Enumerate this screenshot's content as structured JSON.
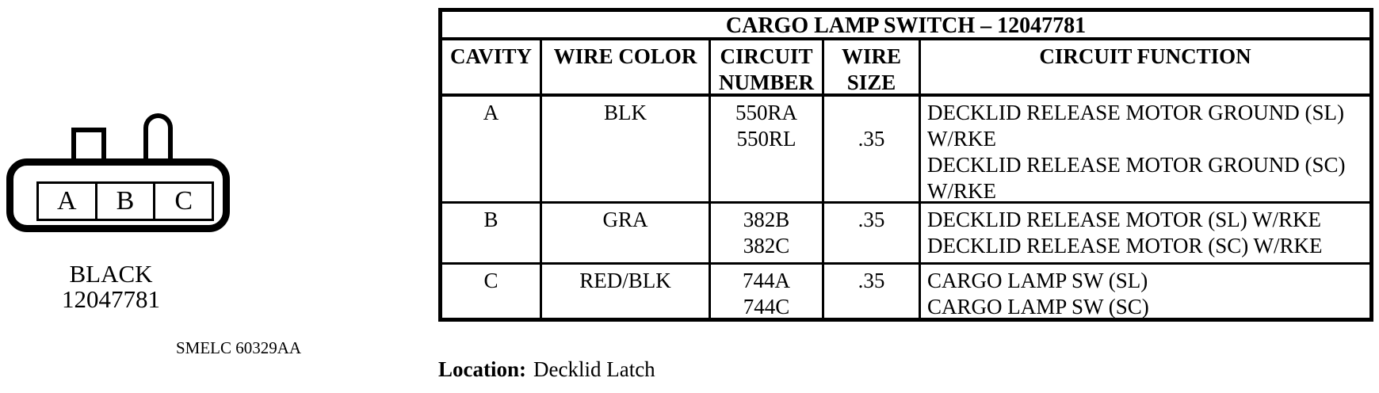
{
  "title": "CARGO LAMP SWITCH – 12047781",
  "connector": {
    "cavities": [
      "A",
      "B",
      "C"
    ],
    "color_label": "BLACK",
    "part_number": "12047781",
    "doc_code": "SMELC 60329AA"
  },
  "table": {
    "headers": {
      "cavity": "CAVITY",
      "wire_color": "WIRE COLOR",
      "circuit_number_lines": [
        "CIRCUIT",
        "NUMBER"
      ],
      "wire_size_lines": [
        "WIRE",
        "SIZE"
      ],
      "circuit_function": "CIRCUIT FUNCTION"
    },
    "rows": [
      {
        "cavity": "A",
        "wire_color": "BLK",
        "circuit_numbers": [
          "550RA",
          "550RL"
        ],
        "wire_size": ".35",
        "function_lines": [
          "DECKLID RELEASE MOTOR GROUND (SL)",
          "W/RKE",
          "DECKLID RELEASE MOTOR GROUND (SC)",
          "W/RKE"
        ]
      },
      {
        "cavity": "B",
        "wire_color": "GRA",
        "circuit_numbers": [
          "382B",
          "382C"
        ],
        "wire_size": ".35",
        "function_lines": [
          "DECKLID RELEASE MOTOR (SL) W/RKE",
          "DECKLID RELEASE MOTOR (SC) W/RKE"
        ]
      },
      {
        "cavity": "C",
        "wire_color": "RED/BLK",
        "circuit_numbers": [
          "744A",
          "744C"
        ],
        "wire_size": ".35",
        "function_lines": [
          "CARGO LAMP SW (SL)",
          "CARGO LAMP SW (SC)"
        ]
      }
    ]
  },
  "footer": {
    "location_label": "Location:",
    "location_value": "Decklid Latch"
  },
  "colors": {
    "ink": "#000000",
    "paper": "#ffffff"
  }
}
